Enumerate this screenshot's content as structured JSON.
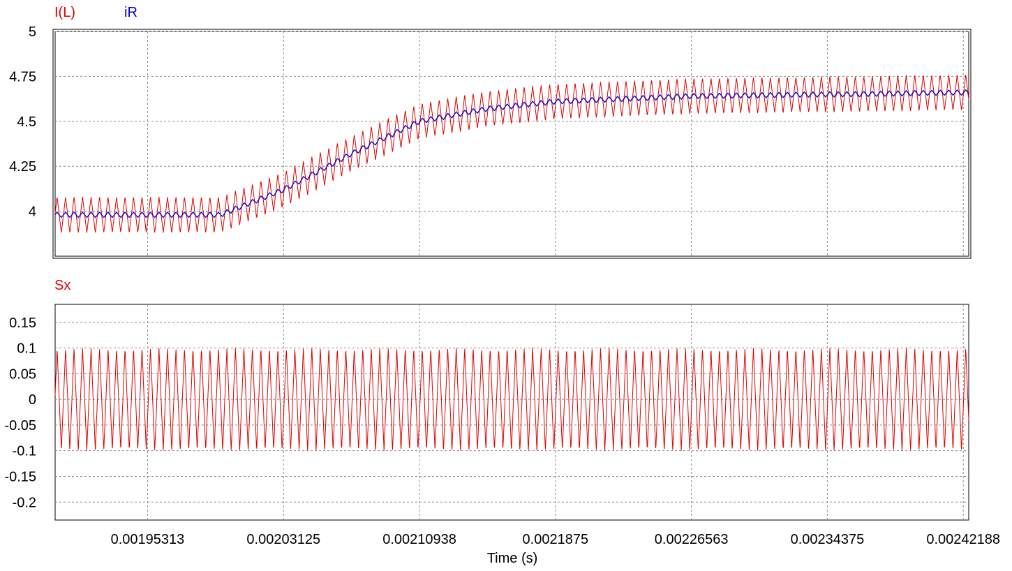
{
  "chart_data": [
    {
      "type": "line",
      "title": "",
      "xlabel": "",
      "ylabel": "",
      "xlim": [
        0.0019,
        0.002425
      ],
      "ylim": [
        3.75,
        5.0
      ],
      "grid": true,
      "y_ticks": [
        "4",
        "4.25",
        "4.5",
        "4.75",
        "5"
      ],
      "y_tick_values": [
        4,
        4.25,
        4.5,
        4.75,
        5
      ],
      "x_tick_values": [
        0.00195313,
        0.00203125,
        0.00210938,
        0.0021875,
        0.00226563,
        0.00234375,
        0.00242188
      ],
      "series": [
        {
          "name": "I(L)",
          "color": "#e00000",
          "switching_frequency_periods_s": 4.88e-06,
          "ripple_peak_to_peak": 0.2,
          "average_envelope": [
            {
              "x": 0.0019,
              "y": 3.98
            },
            {
              "x": 0.001995,
              "y": 3.98
            },
            {
              "x": 0.00203125,
              "y": 4.12
            },
            {
              "x": 0.0020703,
              "y": 4.32
            },
            {
              "x": 0.00210938,
              "y": 4.5
            },
            {
              "x": 0.0021484,
              "y": 4.57
            },
            {
              "x": 0.0021875,
              "y": 4.61
            },
            {
              "x": 0.00226563,
              "y": 4.64
            },
            {
              "x": 0.00234375,
              "y": 4.65
            },
            {
              "x": 0.002425,
              "y": 4.66
            }
          ]
        },
        {
          "name": "iR",
          "color": "#0000c8",
          "ripple_peak_to_peak": 0.03,
          "average_envelope": [
            {
              "x": 0.0019,
              "y": 3.98
            },
            {
              "x": 0.001995,
              "y": 3.98
            },
            {
              "x": 0.00203125,
              "y": 4.12
            },
            {
              "x": 0.0020703,
              "y": 4.32
            },
            {
              "x": 0.00210938,
              "y": 4.5
            },
            {
              "x": 0.0021484,
              "y": 4.57
            },
            {
              "x": 0.0021875,
              "y": 4.61
            },
            {
              "x": 0.00226563,
              "y": 4.64
            },
            {
              "x": 0.00234375,
              "y": 4.65
            },
            {
              "x": 0.002425,
              "y": 4.66
            }
          ]
        }
      ]
    },
    {
      "type": "line",
      "title": "",
      "xlabel": "Time (s)",
      "ylabel": "",
      "xlim": [
        0.0019,
        0.002425
      ],
      "ylim": [
        -0.235,
        0.185
      ],
      "grid": true,
      "y_ticks": [
        "-0.2",
        "-0.15",
        "-0.1",
        "-0.05",
        "0",
        "0.05",
        "0.1",
        "0.15"
      ],
      "y_tick_values": [
        -0.2,
        -0.15,
        -0.1,
        -0.05,
        0,
        0.05,
        0.1,
        0.15
      ],
      "x_ticks": [
        "0.00195313",
        "0.00203125",
        "0.00210938",
        "0.0021875",
        "0.00226563",
        "0.00234375",
        "0.00242188"
      ],
      "x_tick_values": [
        0.00195313,
        0.00203125,
        0.00210938,
        0.0021875,
        0.00226563,
        0.00234375,
        0.00242188
      ],
      "series": [
        {
          "name": "Sx",
          "color": "#e00000",
          "waveform": "triangle",
          "min": -0.1,
          "max": 0.1,
          "period_s": 4.88e-06,
          "first_peak_x": 0.001906,
          "start_value": 0.06
        }
      ]
    }
  ]
}
